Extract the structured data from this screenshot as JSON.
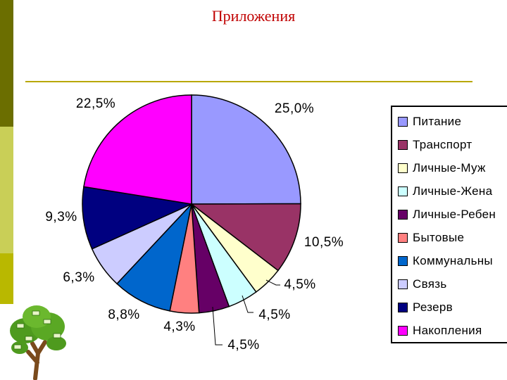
{
  "slide": {
    "title": "Приложения"
  },
  "chart_data": {
    "type": "pie",
    "title": "",
    "start": "12 o'clock, clockwise",
    "legend_position": "right",
    "slices": [
      {
        "name": "Питание",
        "value": 25.0,
        "label": "25,0%",
        "color": "#9999ff"
      },
      {
        "name": "Транспорт",
        "value": 10.5,
        "label": "10,5%",
        "color": "#993366"
      },
      {
        "name": "Личные-Муж",
        "value": 4.5,
        "label": "4,5%",
        "color": "#ffffcc"
      },
      {
        "name": "Личные-Жена",
        "value": 4.5,
        "label": "4,5%",
        "color": "#ccffff"
      },
      {
        "name": "Личные-Ребен",
        "value": 4.5,
        "label": "4,5%",
        "color": "#660066"
      },
      {
        "name": "Бытовые",
        "value": 4.3,
        "label": "4,3%",
        "color": "#ff8080"
      },
      {
        "name": "Коммунальны",
        "value": 8.8,
        "label": "8,8%",
        "color": "#0066cc"
      },
      {
        "name": "Связь",
        "value": 6.3,
        "label": "6,3%",
        "color": "#ccccff"
      },
      {
        "name": "Резерв",
        "value": 9.3,
        "label": "9,3%",
        "color": "#000080"
      },
      {
        "name": "Накопления",
        "value": 22.5,
        "label": "22,5%",
        "color": "#ff00ff"
      }
    ]
  }
}
